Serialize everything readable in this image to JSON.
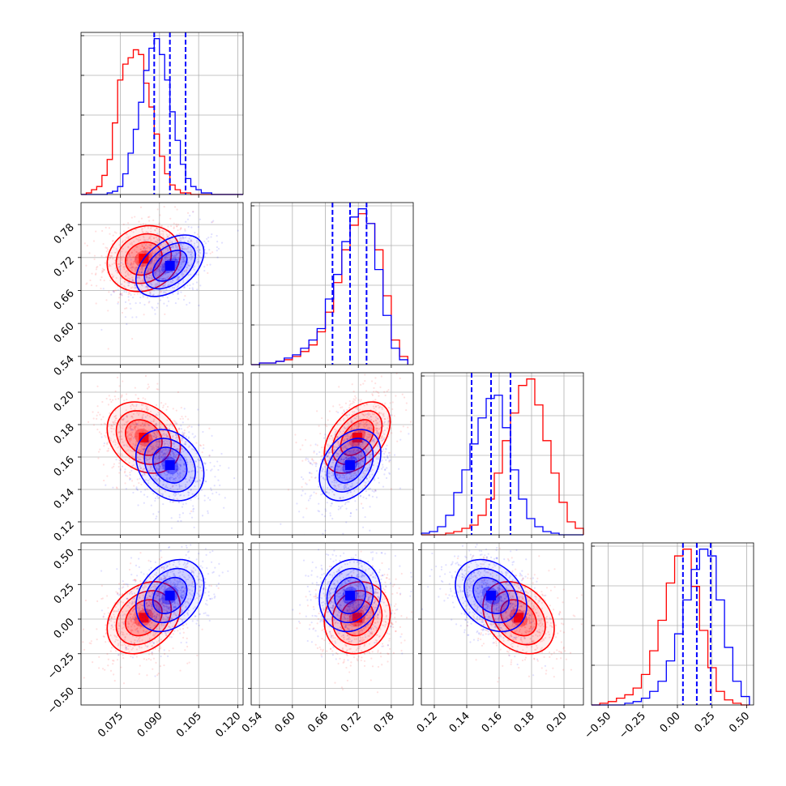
{
  "colors": {
    "red": "#ff0000",
    "blue": "#0000ff"
  },
  "chart_data": {
    "type": "scatter",
    "layout": "corner-plot",
    "grid": true,
    "series": [
      {
        "color": "#ff0000",
        "means": [
          0.084,
          0.718,
          0.172,
          0.01
        ]
      },
      {
        "color": "#0000ff",
        "means": [
          0.094,
          0.705,
          0.155,
          0.17
        ]
      }
    ],
    "parameters": [
      {
        "range": [
          0.06,
          0.122
        ],
        "ticks": [
          "0.075",
          "0.090",
          "0.105",
          "0.120"
        ],
        "tick_values": [
          0.075,
          0.09,
          0.105,
          0.12
        ],
        "hist_bins": [
          0.06,
          0.062,
          0.064,
          0.066,
          0.068,
          0.07,
          0.072,
          0.074,
          0.076,
          0.078,
          0.08,
          0.082,
          0.084,
          0.086,
          0.088,
          0.09,
          0.092,
          0.094,
          0.096,
          0.098,
          0.1,
          0.102,
          0.104,
          0.106,
          0.108,
          0.11,
          0.112,
          0.114,
          0.116,
          0.118,
          0.12,
          0.122
        ],
        "hist_red": [
          0,
          1,
          3,
          5,
          12,
          22,
          45,
          72,
          82,
          86,
          91,
          88,
          70,
          55,
          38,
          24,
          13,
          6,
          3,
          1,
          1,
          0,
          0,
          0,
          0,
          0,
          0,
          0,
          0,
          0,
          0
        ],
        "hist_blue": [
          0,
          0,
          0,
          0,
          0,
          1,
          2,
          5,
          13,
          26,
          41,
          58,
          78,
          92,
          98,
          88,
          72,
          52,
          34,
          19,
          10,
          5,
          3,
          1,
          1,
          0,
          0,
          0,
          0,
          0,
          0
        ],
        "quantiles_blue": [
          0.088,
          0.094,
          0.1
        ]
      },
      {
        "range": [
          0.525,
          0.82
        ],
        "ticks": [
          "0.54",
          "0.60",
          "0.66",
          "0.72",
          "0.78"
        ],
        "tick_values": [
          0.54,
          0.6,
          0.66,
          0.72,
          0.78
        ],
        "hist_bins": [
          0.525,
          0.54,
          0.555,
          0.57,
          0.585,
          0.6,
          0.615,
          0.63,
          0.645,
          0.66,
          0.675,
          0.69,
          0.705,
          0.72,
          0.735,
          0.75,
          0.765,
          0.78,
          0.795,
          0.81
        ],
        "hist_red": [
          0,
          1,
          1,
          2,
          3,
          5,
          8,
          12,
          20,
          32,
          50,
          70,
          85,
          92,
          86,
          70,
          42,
          15,
          5
        ],
        "hist_blue": [
          0,
          1,
          1,
          2,
          4,
          6,
          10,
          15,
          22,
          40,
          55,
          75,
          90,
          95,
          86,
          58,
          30,
          10,
          3
        ],
        "quantiles_blue": [
          0.673,
          0.705,
          0.735
        ]
      },
      {
        "range": [
          0.112,
          0.212
        ],
        "ticks": [
          "0.12",
          "0.14",
          "0.16",
          "0.18",
          "0.20"
        ],
        "tick_values": [
          0.12,
          0.14,
          0.16,
          0.18,
          0.2
        ],
        "hist_bins": [
          0.112,
          0.117,
          0.122,
          0.127,
          0.132,
          0.137,
          0.142,
          0.147,
          0.152,
          0.157,
          0.162,
          0.167,
          0.172,
          0.177,
          0.182,
          0.187,
          0.192,
          0.197,
          0.202,
          0.207,
          0.212
        ],
        "hist_red": [
          0,
          0,
          0,
          1,
          2,
          4,
          6,
          12,
          22,
          38,
          58,
          75,
          92,
          96,
          80,
          58,
          38,
          20,
          8,
          4
        ],
        "hist_blue": [
          1,
          2,
          5,
          12,
          26,
          40,
          56,
          72,
          84,
          86,
          66,
          40,
          22,
          10,
          5,
          2,
          1,
          0,
          0,
          0
        ],
        "quantiles_blue": [
          0.143,
          0.155,
          0.167
        ]
      },
      {
        "range": [
          -0.62,
          0.55
        ],
        "ticks": [
          "−0.50",
          "−0.25",
          "0.00",
          "0.25",
          "0.50"
        ],
        "tick_values": [
          -0.5,
          -0.25,
          0.0,
          0.25,
          0.5
        ],
        "hist_bins": [
          -0.62,
          -0.56,
          -0.5,
          -0.44,
          -0.38,
          -0.32,
          -0.26,
          -0.2,
          -0.14,
          -0.08,
          -0.02,
          0.04,
          0.1,
          0.16,
          0.22,
          0.28,
          0.34,
          0.4,
          0.46,
          0.52
        ],
        "hist_red": [
          0,
          1,
          2,
          4,
          6,
          10,
          18,
          32,
          50,
          72,
          88,
          92,
          70,
          44,
          22,
          8,
          3,
          1,
          0
        ],
        "hist_blue": [
          0,
          0,
          0,
          0,
          1,
          2,
          4,
          8,
          14,
          26,
          42,
          62,
          80,
          92,
          88,
          62,
          34,
          14,
          5
        ],
        "quantiles_blue": [
          0.04,
          0.14,
          0.24
        ]
      }
    ],
    "pairs": [
      {
        "x": 0,
        "y": 1,
        "corr_red": 0.15,
        "corr_blue": 0.45
      },
      {
        "x": 0,
        "y": 2,
        "corr_red": -0.25,
        "corr_blue": -0.25
      },
      {
        "x": 1,
        "y": 2,
        "corr_red": 0.45,
        "corr_blue": 0.35
      },
      {
        "x": 0,
        "y": 3,
        "corr_red": 0.3,
        "corr_blue": 0.3
      },
      {
        "x": 1,
        "y": 3,
        "corr_red": 0.1,
        "corr_blue": 0.1
      },
      {
        "x": 2,
        "y": 3,
        "corr_red": -0.3,
        "corr_blue": -0.3
      }
    ],
    "sigmas": [
      [
        0.007,
        0.0065
      ],
      [
        0.03,
        0.028
      ],
      [
        0.011,
        0.011
      ],
      [
        0.13,
        0.13
      ]
    ]
  }
}
